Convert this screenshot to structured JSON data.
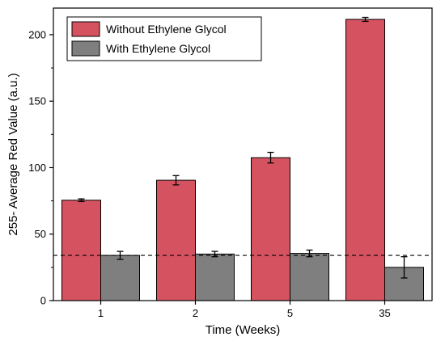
{
  "chart_data": {
    "type": "bar",
    "title": "",
    "xlabel": "Time (Weeks)",
    "ylabel": "255- Average Red Value (a.u.)",
    "categories": [
      "1",
      "2",
      "5",
      "35"
    ],
    "ylim": [
      0,
      220
    ],
    "yticks": [
      0,
      50,
      100,
      150,
      200
    ],
    "grid": false,
    "legend_position": "top-left",
    "reference_line": {
      "y": 34,
      "style": "dashed"
    },
    "series": [
      {
        "name": "Without Ethylene Glycol",
        "color": "#d55360",
        "values": [
          75.5,
          90.5,
          107.5,
          211.5
        ],
        "errors": [
          1.0,
          3.5,
          4.0,
          1.5
        ]
      },
      {
        "name": "With Ethylene Glycol",
        "color": "#7f7f7f",
        "values": [
          34,
          35,
          35.5,
          25
        ],
        "errors": [
          3.0,
          2.0,
          2.5,
          8.0
        ]
      }
    ]
  }
}
